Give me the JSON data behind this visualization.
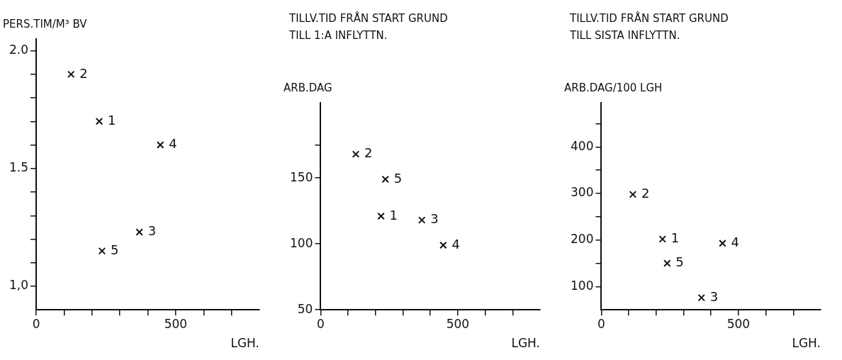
{
  "chart_data": [
    {
      "type": "scatter",
      "ylabel": "PERS.TIM/M³ BV",
      "xlabel": "LGH.",
      "marker": "cross",
      "grid": false,
      "legend": false,
      "xlim": [
        0,
        800
      ],
      "xticks": [
        {
          "value": 0,
          "label": "0"
        },
        {
          "value": 100,
          "label": null
        },
        {
          "value": 200,
          "label": null
        },
        {
          "value": 300,
          "label": null
        },
        {
          "value": 400,
          "label": null
        },
        {
          "value": 500,
          "label": "500"
        },
        {
          "value": 600,
          "label": null
        },
        {
          "value": 700,
          "label": null
        }
      ],
      "ylim": [
        0.9,
        2.05
      ],
      "yticks": [
        {
          "value": 1,
          "label": "1,0"
        },
        {
          "value": 1.1,
          "label": null
        },
        {
          "value": 1.2,
          "label": null
        },
        {
          "value": 1.3,
          "label": null
        },
        {
          "value": 1.4,
          "label": null
        },
        {
          "value": 1.5,
          "label": "1.5"
        },
        {
          "value": 1.6,
          "label": null
        },
        {
          "value": 1.7,
          "label": null
        },
        {
          "value": 1.8,
          "label": null
        },
        {
          "value": 1.9,
          "label": null
        },
        {
          "value": 2,
          "label": "2.0"
        }
      ],
      "series": [
        {
          "color": "#111111",
          "x": [
            226,
            125,
            370,
            445,
            236
          ],
          "values": [
            1.7,
            1.9,
            1.23,
            1.6,
            1.15
          ]
        }
      ],
      "annotations": [
        {
          "text": "1",
          "x": 226,
          "y": 1.7
        },
        {
          "text": "2",
          "x": 125,
          "y": 1.9
        },
        {
          "text": "3",
          "x": 370,
          "y": 1.23
        },
        {
          "text": "4",
          "x": 445,
          "y": 1.6
        },
        {
          "text": "5",
          "x": 236,
          "y": 1.15
        }
      ]
    },
    {
      "type": "scatter",
      "title": "TILLV.TID FRÅN START GRUND TILL 1:A INFLYTTN.",
      "ylabel": "ARB.DAG",
      "xlabel": "LGH.",
      "marker": "cross",
      "grid": false,
      "legend": false,
      "xlim": [
        0,
        800
      ],
      "xticks": [
        {
          "value": 0,
          "label": "0"
        },
        {
          "value": 100,
          "label": null
        },
        {
          "value": 200,
          "label": null
        },
        {
          "value": 300,
          "label": null
        },
        {
          "value": 400,
          "label": null
        },
        {
          "value": 500,
          "label": "500"
        },
        {
          "value": 600,
          "label": null
        },
        {
          "value": 700,
          "label": null
        }
      ],
      "ylim": [
        50,
        207
      ],
      "yticks": [
        {
          "value": 50,
          "label": "50"
        },
        {
          "value": 100,
          "label": "100"
        },
        {
          "value": 150,
          "label": "150"
        },
        {
          "value": 175,
          "label": null
        }
      ],
      "series": [
        {
          "color": "#111111",
          "x": [
            220,
            128,
            369,
            447,
            236
          ],
          "values": [
            121,
            168,
            118,
            99,
            149
          ]
        }
      ],
      "annotations": [
        {
          "text": "1",
          "x": 220,
          "y": 121
        },
        {
          "text": "2",
          "x": 128,
          "y": 168
        },
        {
          "text": "3",
          "x": 369,
          "y": 118
        },
        {
          "text": "4",
          "x": 447,
          "y": 99
        },
        {
          "text": "5",
          "x": 236,
          "y": 149
        }
      ]
    },
    {
      "type": "scatter",
      "title": "TILLV.TID FRÅN START GRUND TILL SISTA INFLYTTN.",
      "ylabel": "ARB.DAG/100 LGH",
      "xlabel": "LGH.",
      "marker": "cross",
      "grid": false,
      "legend": false,
      "xlim": [
        0,
        800
      ],
      "xticks": [
        {
          "value": 0,
          "label": "0"
        },
        {
          "value": 100,
          "label": null
        },
        {
          "value": 200,
          "label": null
        },
        {
          "value": 300,
          "label": null
        },
        {
          "value": 400,
          "label": null
        },
        {
          "value": 500,
          "label": "500"
        },
        {
          "value": 600,
          "label": null
        },
        {
          "value": 700,
          "label": null
        }
      ],
      "ylim": [
        50,
        495
      ],
      "yticks": [
        {
          "value": 100,
          "label": "100"
        },
        {
          "value": 150,
          "label": null
        },
        {
          "value": 200,
          "label": "200"
        },
        {
          "value": 250,
          "label": null
        },
        {
          "value": 300,
          "label": "300"
        },
        {
          "value": 350,
          "label": null
        },
        {
          "value": 400,
          "label": "400"
        },
        {
          "value": 450,
          "label": null
        }
      ],
      "series": [
        {
          "color": "#111111",
          "x": [
            223,
            115,
            365,
            442,
            240
          ],
          "values": [
            202,
            298,
            76,
            193,
            150
          ]
        }
      ],
      "annotations": [
        {
          "text": "1",
          "x": 223,
          "y": 202
        },
        {
          "text": "2",
          "x": 115,
          "y": 298
        },
        {
          "text": "3",
          "x": 365,
          "y": 76
        },
        {
          "text": "4",
          "x": 442,
          "y": 193
        },
        {
          "text": "5",
          "x": 240,
          "y": 150
        }
      ]
    }
  ]
}
